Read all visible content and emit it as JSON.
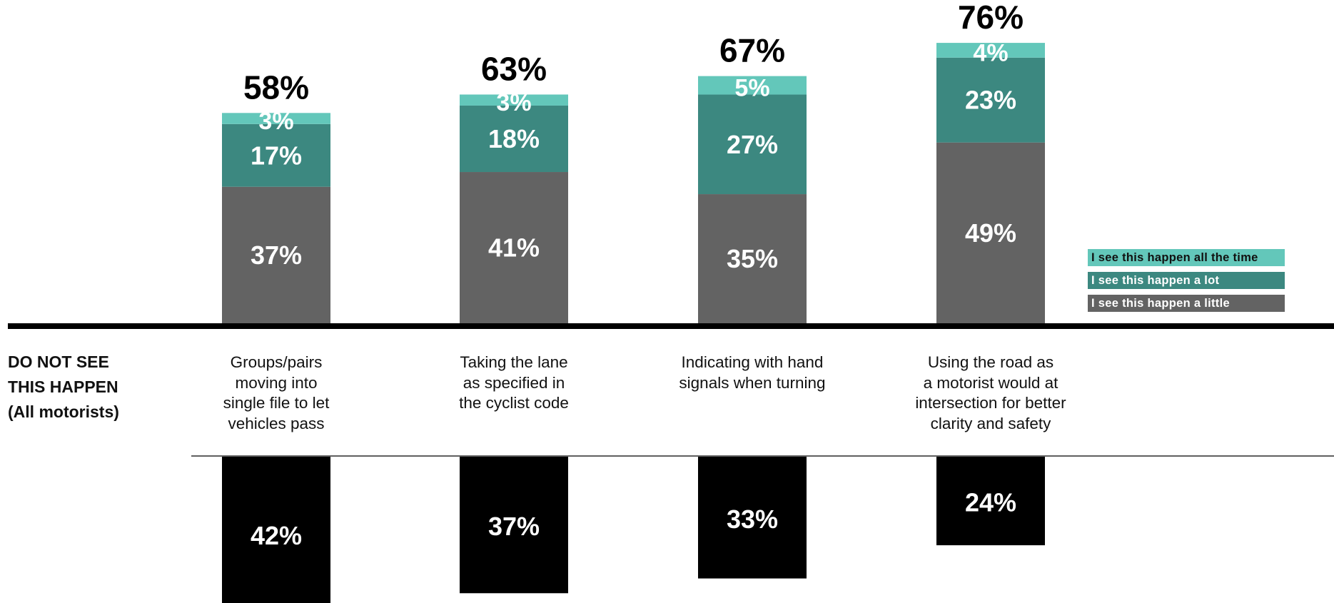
{
  "colors": {
    "all_the_time": "#63c7ba",
    "a_lot": "#3c8880",
    "a_little": "#636363",
    "do_not_see": "#000000"
  },
  "side_label": [
    "DO NOT SEE",
    "THIS HAPPEN",
    "(All motorists)"
  ],
  "legend": [
    {
      "label": "I see this happen all the time",
      "color_key": "all_the_time"
    },
    {
      "label": "I see this happen a lot",
      "color_key": "a_lot"
    },
    {
      "label": "I see this happen a little",
      "color_key": "a_little"
    }
  ],
  "chart_data": {
    "type": "bar",
    "stacked": true,
    "diverging": true,
    "categories": [
      "Groups/pairs moving into single file to let vehicles pass",
      "Taking the lane as specified in the cyclist code",
      "Indicating with hand signals when turning",
      "Using the road as a motorist would at intersection for better clarity and safety"
    ],
    "category_lines": [
      [
        "Groups/pairs",
        "moving into",
        "single file to let",
        "vehicles pass"
      ],
      [
        "Taking the lane",
        "as specified in",
        "the cyclist code"
      ],
      [
        "Indicating with hand",
        "signals when turning"
      ],
      [
        "Using the road as",
        "a motorist would at",
        "intersection for better",
        "clarity and safety"
      ]
    ],
    "series": [
      {
        "name": "I see this happen a little",
        "values": [
          37,
          41,
          35,
          49
        ]
      },
      {
        "name": "I see this happen a lot",
        "values": [
          17,
          18,
          27,
          23
        ]
      },
      {
        "name": "I see this happen all the time",
        "values": [
          3,
          3,
          5,
          4
        ]
      }
    ],
    "totals": [
      "58%",
      "63%",
      "67%",
      "76%"
    ],
    "value_labels": {
      "a_little": [
        "37%",
        "41%",
        "35%",
        "49%"
      ],
      "a_lot": [
        "17%",
        "18%",
        "27%",
        "23%"
      ],
      "all_the_time": [
        "3%",
        "3%",
        "5%",
        "4%"
      ]
    },
    "negative_series": {
      "name": "DO NOT SEE THIS HAPPEN (All motorists)",
      "values": [
        42,
        37,
        33,
        24
      ],
      "labels": [
        "42%",
        "37%",
        "33%",
        "24%"
      ]
    },
    "grid": false,
    "legend_position": "right"
  }
}
